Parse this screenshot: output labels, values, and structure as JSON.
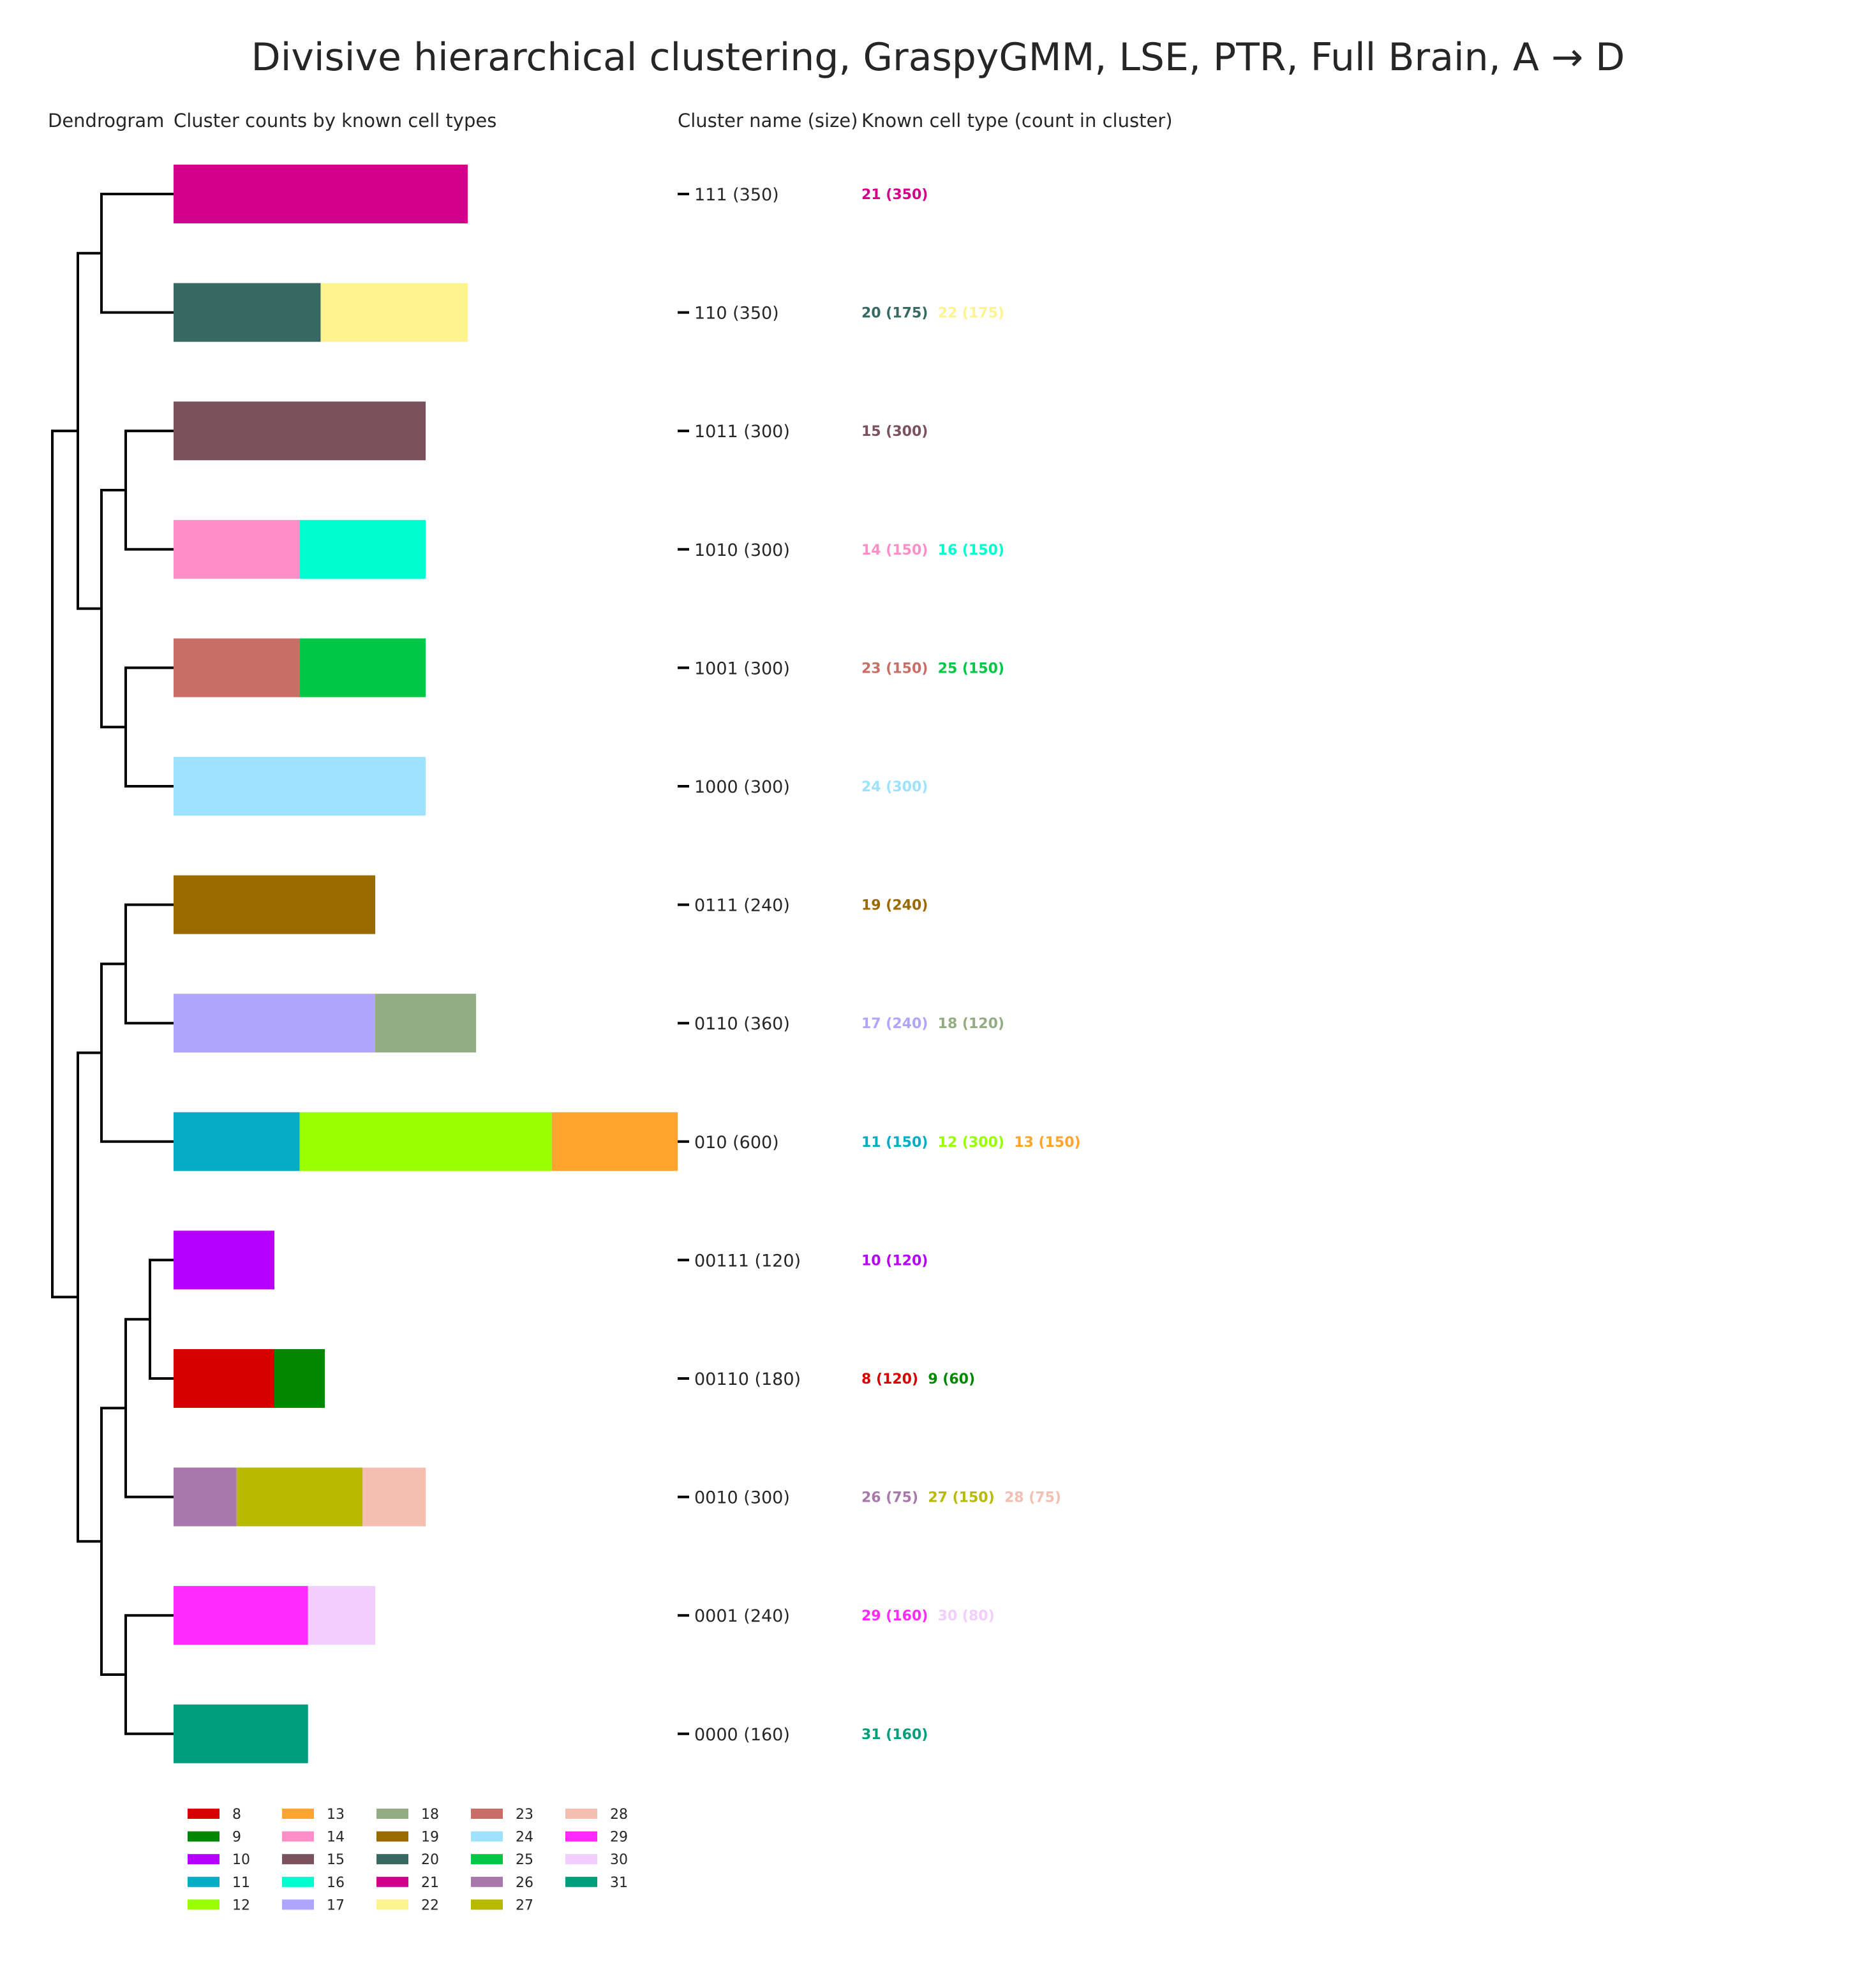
{
  "title": "Divisive hierarchical clustering, GraspyGMM, LSE, PTR, Full Brain, A → D",
  "headers": {
    "dendrogram": "Dendrogram",
    "counts": "Cluster counts by known cell types",
    "cluster_name": "Cluster name (size)",
    "known_type": "Known cell type (count in cluster)"
  },
  "chart_data": {
    "type": "bar",
    "orientation": "horizontal",
    "stacked": true,
    "title": "Divisive hierarchical clustering, GraspyGMM, LSE, PTR, Full Brain, A → D",
    "grid": false,
    "legend_position": "bottom-left",
    "colors": {
      "8": "#d60000",
      "9": "#018700",
      "10": "#b500ff",
      "11": "#05acc6",
      "12": "#97ff00",
      "13": "#ffa52f",
      "14": "#ff8ec8",
      "15": "#79525e",
      "16": "#00fdcf",
      "17": "#afa5ff",
      "18": "#93ac83",
      "19": "#9a6900",
      "20": "#366962",
      "21": "#d3008c",
      "22": "#fdf490",
      "23": "#c86e66",
      "24": "#9ee2ff",
      "25": "#00c846",
      "26": "#a877ac",
      "27": "#b8ba01",
      "28": "#f4bfb1",
      "29": "#ff28fd",
      "30": "#f2cdff",
      "31": "#009e7c"
    },
    "clusters": [
      {
        "name": "111",
        "size": 350,
        "segments": [
          {
            "type": "21",
            "count": 350
          }
        ]
      },
      {
        "name": "110",
        "size": 350,
        "segments": [
          {
            "type": "20",
            "count": 175
          },
          {
            "type": "22",
            "count": 175
          }
        ]
      },
      {
        "name": "1011",
        "size": 300,
        "segments": [
          {
            "type": "15",
            "count": 300
          }
        ]
      },
      {
        "name": "1010",
        "size": 300,
        "segments": [
          {
            "type": "14",
            "count": 150
          },
          {
            "type": "16",
            "count": 150
          }
        ]
      },
      {
        "name": "1001",
        "size": 300,
        "segments": [
          {
            "type": "23",
            "count": 150
          },
          {
            "type": "25",
            "count": 150
          }
        ]
      },
      {
        "name": "1000",
        "size": 300,
        "segments": [
          {
            "type": "24",
            "count": 300
          }
        ]
      },
      {
        "name": "0111",
        "size": 240,
        "segments": [
          {
            "type": "19",
            "count": 240
          }
        ]
      },
      {
        "name": "0110",
        "size": 360,
        "segments": [
          {
            "type": "17",
            "count": 240
          },
          {
            "type": "18",
            "count": 120
          }
        ]
      },
      {
        "name": "010",
        "size": 600,
        "segments": [
          {
            "type": "11",
            "count": 150
          },
          {
            "type": "12",
            "count": 300
          },
          {
            "type": "13",
            "count": 150
          }
        ]
      },
      {
        "name": "00111",
        "size": 120,
        "segments": [
          {
            "type": "10",
            "count": 120
          }
        ]
      },
      {
        "name": "00110",
        "size": 180,
        "segments": [
          {
            "type": "8",
            "count": 120
          },
          {
            "type": "9",
            "count": 60
          }
        ]
      },
      {
        "name": "0010",
        "size": 300,
        "segments": [
          {
            "type": "26",
            "count": 75
          },
          {
            "type": "27",
            "count": 150
          },
          {
            "type": "28",
            "count": 75
          }
        ]
      },
      {
        "name": "0001",
        "size": 240,
        "segments": [
          {
            "type": "29",
            "count": 160
          },
          {
            "type": "30",
            "count": 80
          }
        ]
      },
      {
        "name": "0000",
        "size": 160,
        "segments": [
          {
            "type": "31",
            "count": 160
          }
        ]
      }
    ],
    "legend": [
      "8",
      "9",
      "10",
      "11",
      "12",
      "13",
      "14",
      "15",
      "16",
      "17",
      "18",
      "19",
      "20",
      "21",
      "22",
      "23",
      "24",
      "25",
      "26",
      "27",
      "28",
      "29",
      "30",
      "31"
    ]
  }
}
